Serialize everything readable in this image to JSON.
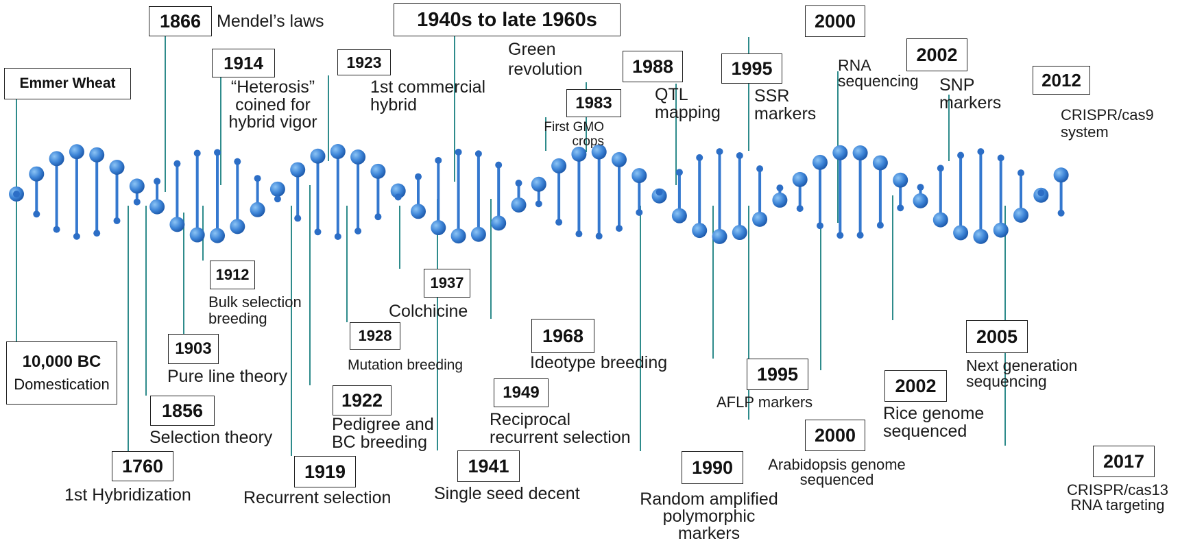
{
  "title": "",
  "colors": {
    "connector": "#2e8b8b",
    "bead_light": "#5ea3e6",
    "bead_dark": "#1d5fb8",
    "box_border": "#222222"
  },
  "milestones": {
    "emmer": {
      "label": "Emmer Wheat"
    },
    "bc10000": {
      "year": "10,000 BC",
      "desc": "Domestication"
    },
    "y1760": {
      "year": "1760",
      "desc": "1st Hybridization"
    },
    "y1856": {
      "year": "1856",
      "desc": "Selection theory"
    },
    "y1866": {
      "year": "1866",
      "desc": "Mendel’s laws"
    },
    "y1903": {
      "year": "1903",
      "desc": "Pure line theory"
    },
    "y1912": {
      "year": "1912",
      "desc_l1": "Bulk selection",
      "desc_l2": "breeding"
    },
    "y1914": {
      "year": "1914",
      "desc_l1": "“Heterosis”",
      "desc_l2": "coined for",
      "desc_l3": "hybrid vigor"
    },
    "y1919": {
      "year": "1919",
      "desc": "Recurrent selection"
    },
    "y1922": {
      "year": "1922",
      "desc_l1": "Pedigree and",
      "desc_l2": "BC breeding"
    },
    "y1923": {
      "year": "1923",
      "desc_l1": "1st commercial",
      "desc_l2": "hybrid"
    },
    "y1928": {
      "year": "1928",
      "desc": "Mutation breeding"
    },
    "y1937": {
      "year": "1937",
      "desc": "Colchicine"
    },
    "y1940s": {
      "year": "1940s to late 1960s",
      "desc_l1": "Green",
      "desc_l2": "revolution"
    },
    "y1941": {
      "year": "1941",
      "desc": "Single seed decent"
    },
    "y1949": {
      "year": "1949",
      "desc_l1": "Reciprocal",
      "desc_l2": "recurrent selection"
    },
    "y1968": {
      "year": "1968",
      "desc": "Ideotype breeding"
    },
    "y1983": {
      "year": "1983",
      "desc_l1": "First GMO",
      "desc_l2": "crops"
    },
    "y1988": {
      "year": "1988",
      "desc_l1": "QTL",
      "desc_l2": "mapping"
    },
    "y1990": {
      "year": "1990",
      "desc_l1": "Random amplified",
      "desc_l2": "polymorphic",
      "desc_l3": "markers"
    },
    "y1995a": {
      "year": "1995",
      "desc_l1": "SSR",
      "desc_l2": "markers"
    },
    "y1995b": {
      "year": "1995",
      "desc": "AFLP markers"
    },
    "y2000a": {
      "year": "2000",
      "desc_l1": "RNA",
      "desc_l2": "sequencing"
    },
    "y2000b": {
      "year": "2000",
      "desc_l1": "Arabidopsis genome",
      "desc_l2": "sequenced"
    },
    "y2002a": {
      "year": "2002",
      "desc_l1": "SNP",
      "desc_l2": "markers"
    },
    "y2002b": {
      "year": "2002",
      "desc_l1": "Rice genome",
      "desc_l2": "sequenced"
    },
    "y2005": {
      "year": "2005",
      "desc_l1": "Next generation",
      "desc_l2": "sequencing"
    },
    "y2012": {
      "year": "2012",
      "desc_l1": "CRISPR/cas9",
      "desc_l2": "system"
    },
    "y2017": {
      "year": "2017",
      "desc_l1": "CRISPR/cas13",
      "desc_l2": "RNA targeting"
    }
  }
}
